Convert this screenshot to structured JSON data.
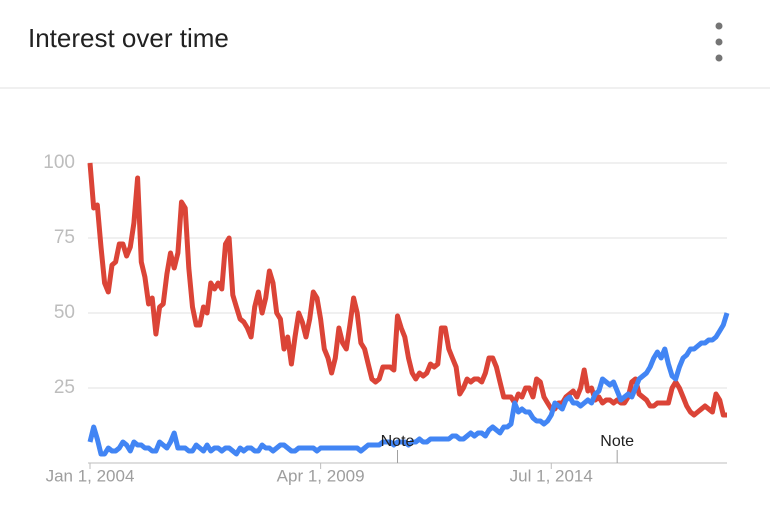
{
  "title": "Interest over time",
  "chart_data": {
    "type": "line",
    "categories": [
      "Jan 1, 2004",
      null,
      null,
      null,
      null,
      null,
      null,
      null,
      null,
      null,
      null,
      null,
      null,
      null,
      null,
      null,
      null,
      null,
      null,
      null,
      null,
      null,
      null,
      null,
      null,
      null,
      null,
      null,
      null,
      null,
      null,
      null,
      null,
      null,
      null,
      null,
      null,
      null,
      null,
      null,
      null,
      null,
      null,
      null,
      null,
      null,
      null,
      null,
      null,
      null,
      null,
      null,
      null,
      null,
      null,
      null,
      null,
      null,
      null,
      null,
      null,
      null,
      null,
      "Apr 1, 2009",
      null,
      null,
      null,
      null,
      null,
      null,
      null,
      null,
      null,
      null,
      null,
      null,
      null,
      null,
      null,
      null,
      null,
      null,
      null,
      null,
      null,
      null,
      null,
      null,
      null,
      null,
      null,
      null,
      null,
      null,
      null,
      null,
      null,
      null,
      null,
      null,
      null,
      null,
      null,
      null,
      null,
      null,
      null,
      null,
      null,
      null,
      null,
      null,
      null,
      null,
      null,
      null,
      null,
      null,
      null,
      null,
      null,
      null,
      null,
      null,
      null,
      null,
      "Jul 1, 2014",
      null,
      null,
      null,
      null,
      null,
      null,
      null,
      null,
      null,
      null,
      null,
      null,
      null,
      null,
      null,
      null,
      null,
      null,
      null,
      null,
      null,
      null,
      null,
      null,
      null,
      null,
      null,
      null,
      null,
      null,
      null,
      null,
      null,
      null,
      null,
      null,
      null,
      null,
      null,
      null,
      null,
      null,
      null,
      null,
      null,
      null,
      null,
      null
    ],
    "series": [
      {
        "color": "#db4437",
        "values": [
          100,
          85,
          86,
          72,
          60,
          57,
          66,
          67,
          73,
          73,
          69,
          72,
          80,
          95,
          67,
          62,
          53,
          55,
          43,
          52,
          53,
          63,
          70,
          65,
          70,
          87,
          85,
          65,
          52,
          46,
          46,
          52,
          50,
          60,
          58,
          60,
          58,
          73,
          75,
          56,
          52,
          48,
          47,
          45,
          42,
          52,
          57,
          50,
          55,
          64,
          60,
          50,
          48,
          38,
          42,
          33,
          42,
          50,
          47,
          42,
          48,
          57,
          55,
          48,
          38,
          35,
          30,
          35,
          45,
          40,
          38,
          46,
          55,
          50,
          40,
          38,
          33,
          28,
          27,
          28,
          32,
          32,
          32,
          31,
          49,
          45,
          42,
          35,
          30,
          28,
          30,
          29,
          30,
          33,
          32,
          33,
          45,
          45,
          38,
          35,
          32,
          23,
          25,
          28,
          27,
          28,
          28,
          27,
          30,
          35,
          35,
          32,
          27,
          22,
          22,
          22,
          20,
          23,
          22,
          25,
          25,
          22,
          28,
          27,
          22,
          20,
          18,
          18,
          20,
          20,
          22,
          23,
          24,
          22,
          25,
          31,
          24,
          25,
          21,
          22,
          20,
          21,
          21,
          20,
          21,
          20,
          20,
          22,
          27,
          28,
          23,
          22,
          21,
          19,
          19,
          20,
          20,
          20,
          20,
          25,
          27,
          25,
          22,
          19,
          17,
          16,
          17,
          18,
          19,
          18,
          17,
          23,
          21,
          16,
          16
        ]
      },
      {
        "color": "#4285f4",
        "values": [
          7,
          12,
          8,
          3,
          3,
          5,
          4,
          4,
          5,
          7,
          6,
          4,
          7,
          6,
          6,
          5,
          5,
          4,
          4,
          7,
          6,
          5,
          7,
          10,
          5,
          5,
          5,
          4,
          4,
          6,
          5,
          4,
          6,
          4,
          5,
          5,
          4,
          5,
          5,
          4,
          3,
          5,
          4,
          5,
          5,
          4,
          4,
          6,
          5,
          5,
          4,
          5,
          6,
          6,
          5,
          4,
          4,
          5,
          5,
          5,
          5,
          5,
          4,
          5,
          5,
          5,
          5,
          5,
          5,
          5,
          5,
          5,
          5,
          5,
          4,
          5,
          6,
          6,
          6,
          6,
          7,
          7,
          7,
          6,
          7,
          7,
          7,
          6,
          7,
          7,
          8,
          7,
          7,
          8,
          8,
          8,
          8,
          8,
          8,
          9,
          9,
          8,
          8,
          9,
          10,
          9,
          10,
          10,
          9,
          11,
          12,
          11,
          10,
          12,
          12,
          13,
          20,
          17,
          18,
          17,
          17,
          15,
          14,
          14,
          13,
          14,
          16,
          20,
          19,
          18,
          21,
          22,
          20,
          20,
          19,
          20,
          21,
          20,
          23,
          24,
          28,
          27,
          26,
          27,
          24,
          21,
          22,
          23,
          22,
          25,
          28,
          29,
          30,
          32,
          35,
          37,
          35,
          38,
          33,
          29,
          28,
          32,
          35,
          36,
          38,
          38,
          39,
          40,
          40,
          41,
          41,
          42,
          44,
          46,
          50
        ]
      }
    ],
    "ylim": [
      0,
      100
    ],
    "yticks": [
      25,
      50,
      75,
      100
    ],
    "grid": true,
    "annotations": [
      {
        "label": "Note",
        "at": 84
      },
      {
        "label": "Note",
        "at": 144
      }
    ]
  }
}
